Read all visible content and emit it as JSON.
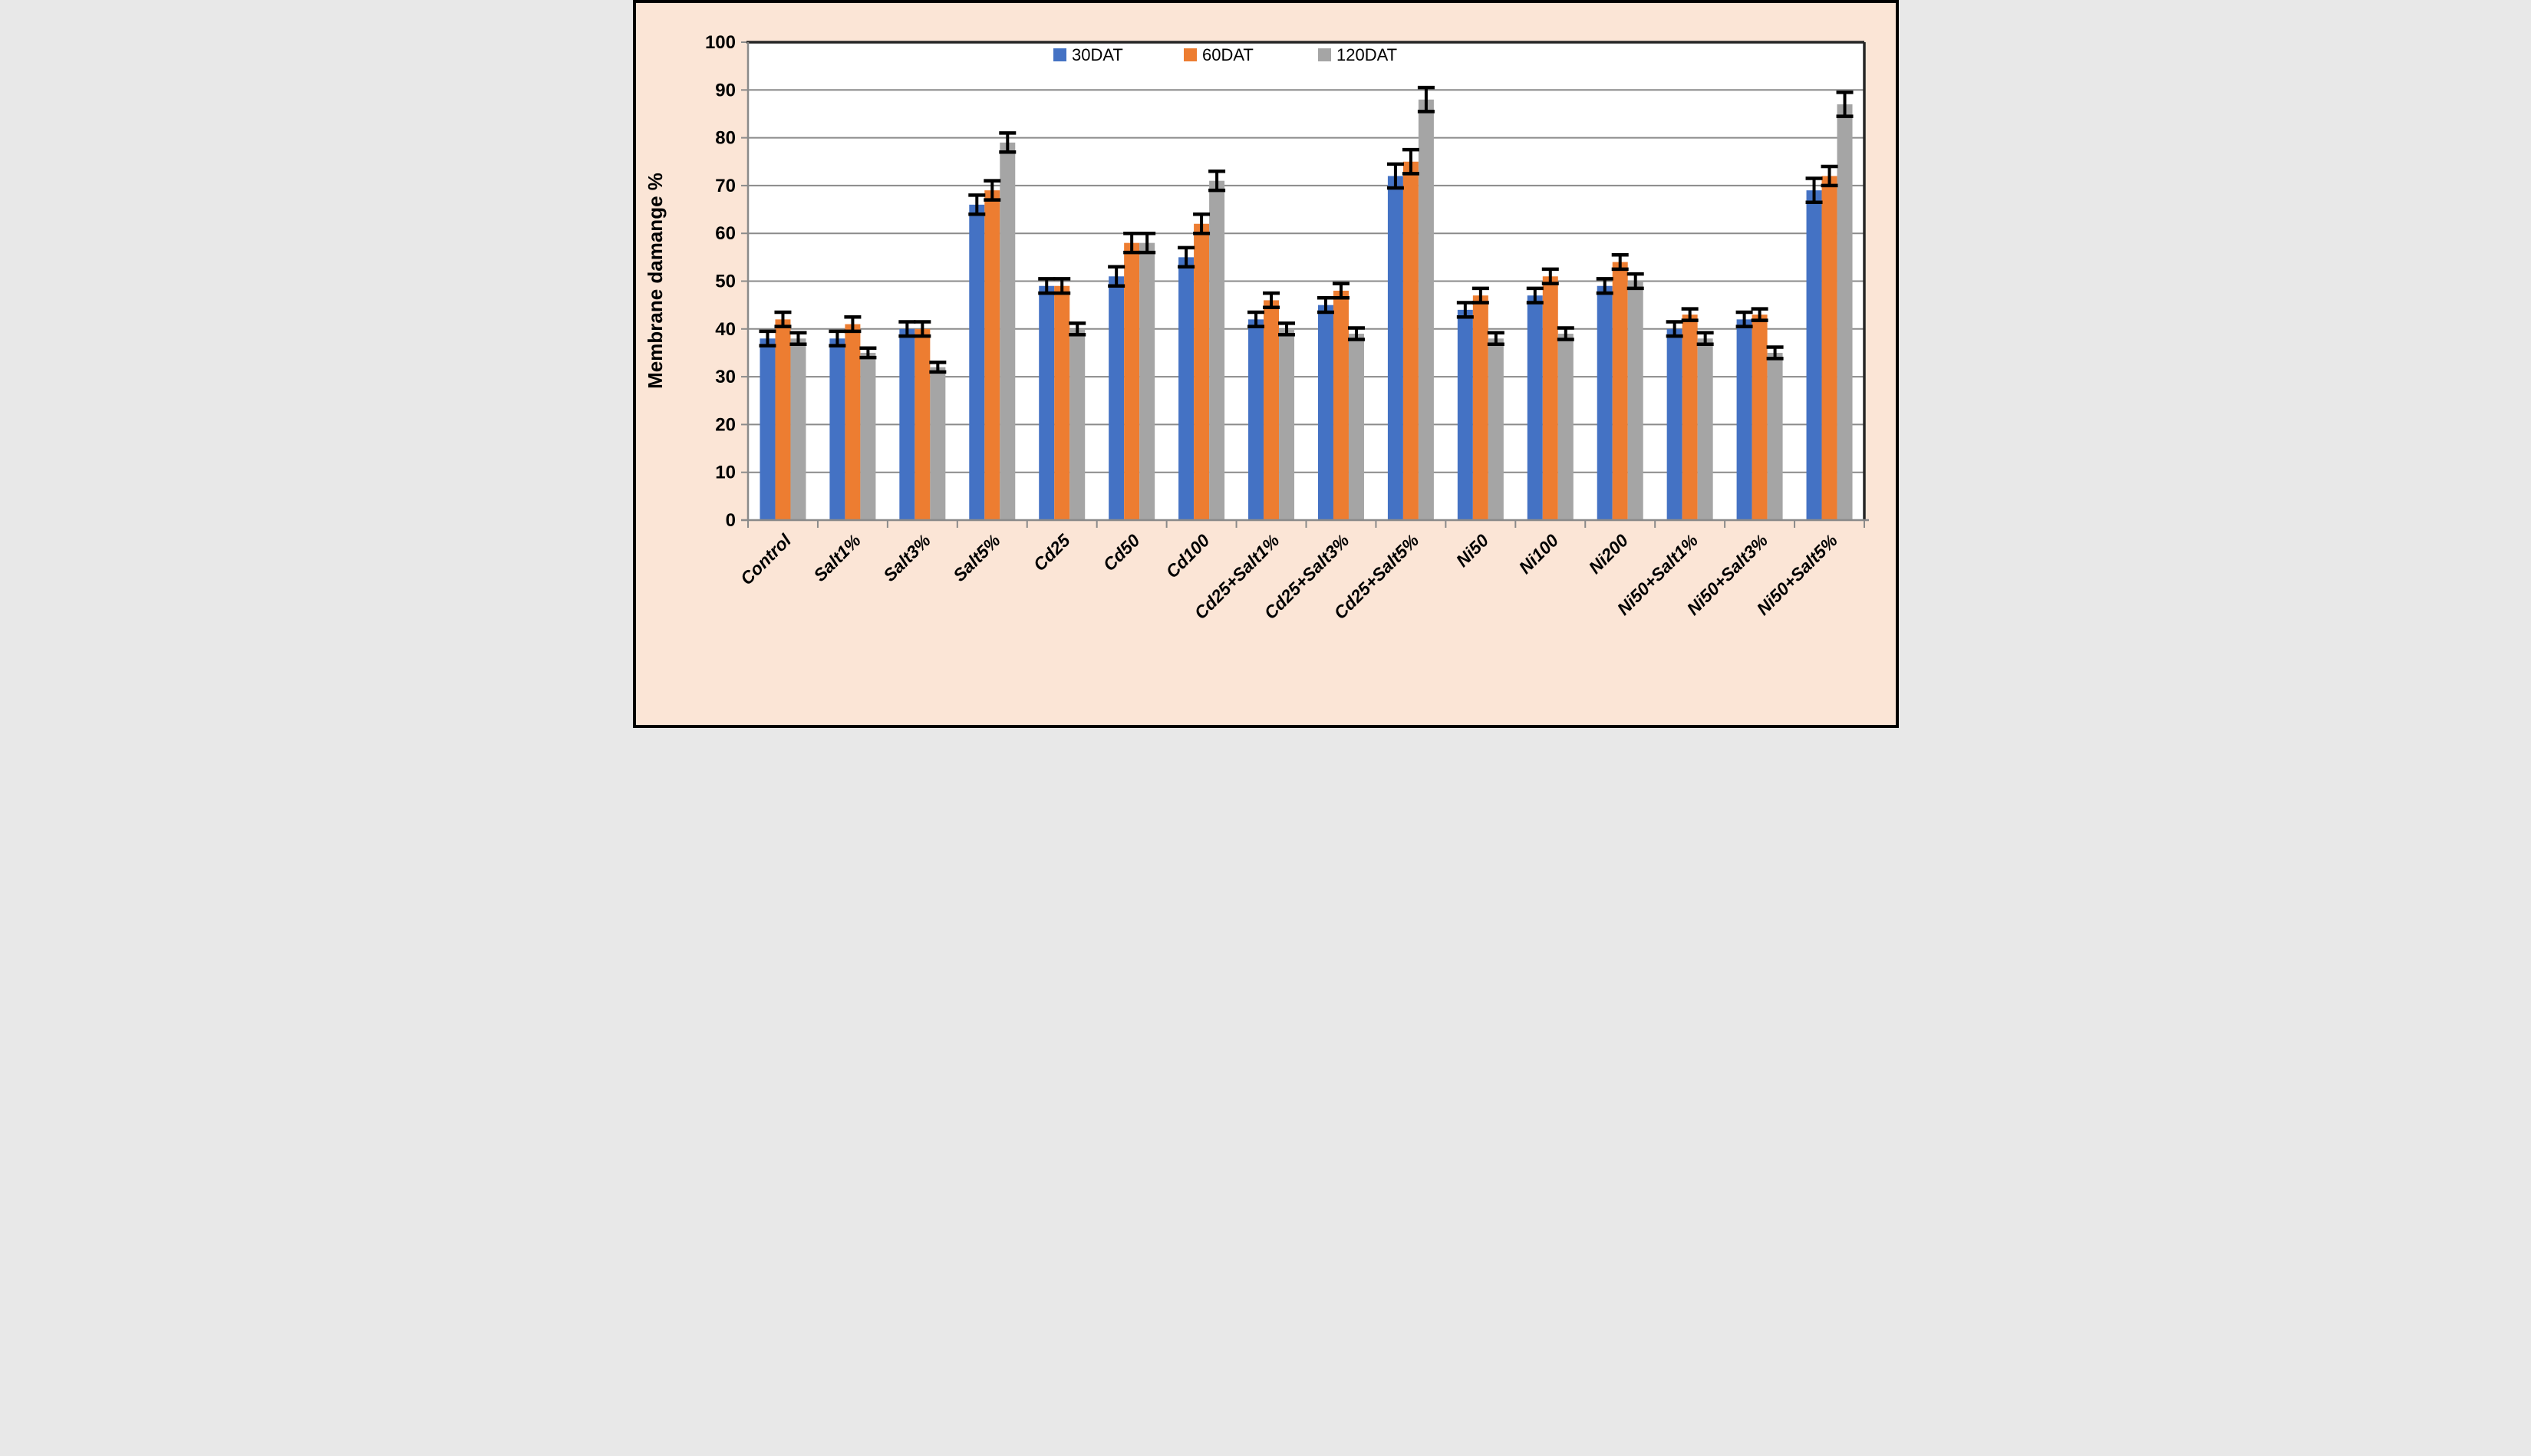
{
  "chart_data": {
    "type": "bar",
    "title": "",
    "xlabel": "",
    "ylabel": "Membrane damange %",
    "ylim": [
      0,
      100
    ],
    "ytick_step": 10,
    "grid": true,
    "legend_position": "top-center",
    "error_bars": true,
    "categories": [
      "Control",
      "Salt1%",
      "Salt3%",
      "Salt5%",
      "Cd25",
      "Cd50",
      "Cd100",
      "Cd25+Salt1%",
      "Cd25+Salt3%",
      "Cd25+Salt5%",
      "Ni50",
      "Ni100",
      "Ni200",
      "Ni50+Salt1%",
      "Ni50+Salt3%",
      "Ni50+Salt5%"
    ],
    "series": [
      {
        "name": "30DAT",
        "color": "#4472C4",
        "values": [
          38,
          38,
          40,
          66,
          49,
          51,
          55,
          42,
          45,
          72,
          44,
          47,
          49,
          40,
          42,
          69
        ],
        "errors": [
          1.5,
          1.5,
          1.5,
          2,
          1.5,
          2,
          2,
          1.5,
          1.5,
          2.5,
          1.5,
          1.5,
          1.5,
          1.5,
          1.5,
          2.5
        ]
      },
      {
        "name": "60DAT",
        "color": "#ED7D31",
        "values": [
          42,
          41,
          40,
          69,
          49,
          58,
          62,
          46,
          48,
          75,
          47,
          51,
          54,
          43,
          43,
          72
        ],
        "errors": [
          1.5,
          1.5,
          1.5,
          2,
          1.5,
          2,
          2,
          1.5,
          1.5,
          2.5,
          1.5,
          1.5,
          1.5,
          1.2,
          1.2,
          2
        ]
      },
      {
        "name": "120DAT",
        "color": "#A5A5A5",
        "values": [
          38,
          35,
          32,
          79,
          40,
          58,
          71,
          40,
          39,
          88,
          38,
          39,
          50,
          38,
          35,
          87
        ],
        "errors": [
          1.2,
          1,
          1,
          2,
          1.2,
          2,
          2,
          1.2,
          1.2,
          2.5,
          1.2,
          1.2,
          1.5,
          1.2,
          1.2,
          2.5
        ]
      }
    ]
  },
  "style": {
    "background": "#FBE5D6",
    "plot_background": "#FFFFFF",
    "grid_color": "#8A8A8A",
    "axis_color": "#8A8A8A",
    "plot_border_color": "#262626",
    "outer_border_color": "#000000",
    "error_bar_color": "#000000",
    "text_color": "#000000"
  }
}
